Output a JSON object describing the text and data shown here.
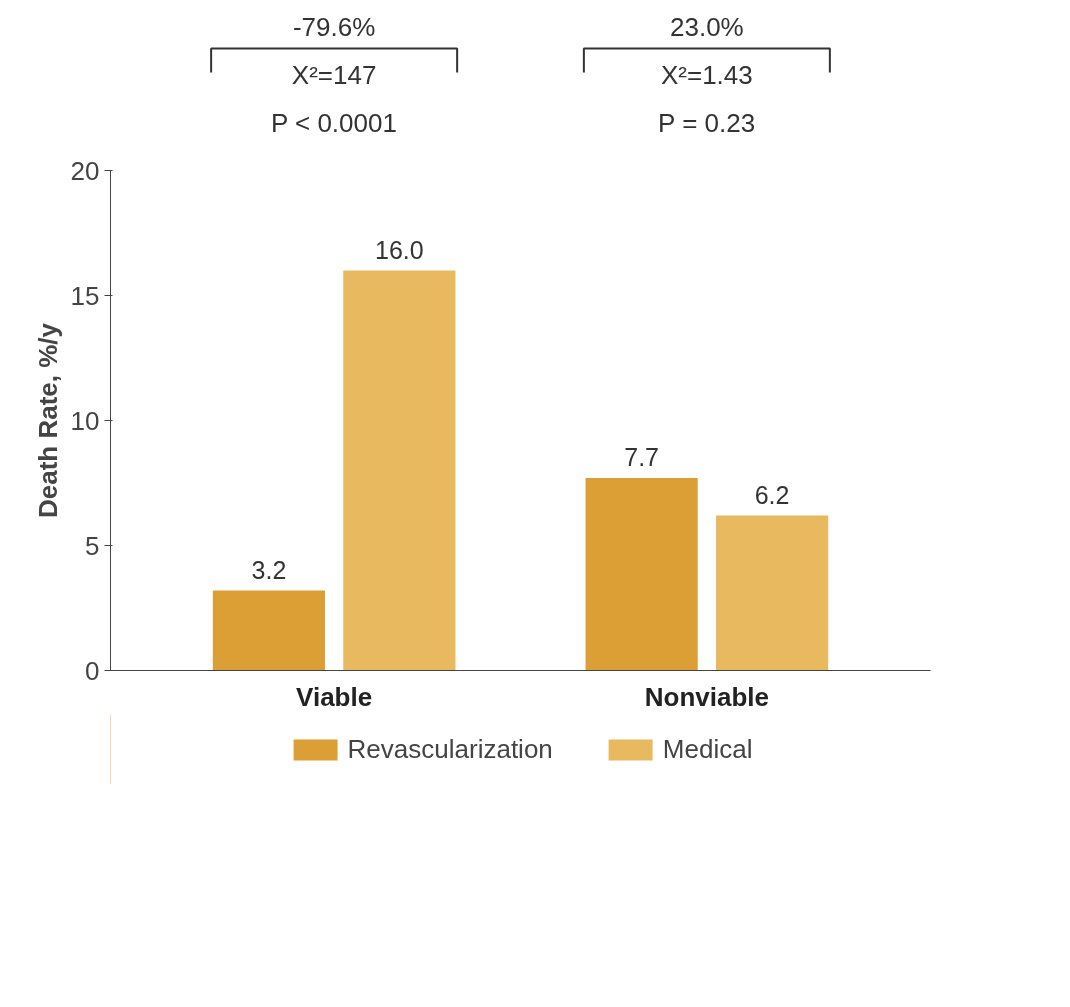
{
  "chart_data": {
    "type": "bar",
    "ylabel": "Death Rate, %/y",
    "categories": [
      "Viable",
      "Nonviable"
    ],
    "series": [
      {
        "name": "Revascularization",
        "color": "#dc9f35",
        "values": [
          3.2,
          7.7
        ],
        "value_labels": [
          "3.2",
          "7.7"
        ]
      },
      {
        "name": "Medical",
        "color": "#e8b95f",
        "values": [
          16.0,
          6.2
        ],
        "value_labels": [
          "16.0",
          "6.2"
        ]
      }
    ],
    "ylim": [
      0,
      20
    ],
    "yticks": [
      0,
      5,
      10,
      15,
      20
    ],
    "legend": "bottom",
    "data_labels": true,
    "annotations": [
      "-79.6%",
      "X²=147",
      "P < 0.0001",
      "23.0%",
      "X²=1.43",
      "P = 0.23"
    ]
  }
}
